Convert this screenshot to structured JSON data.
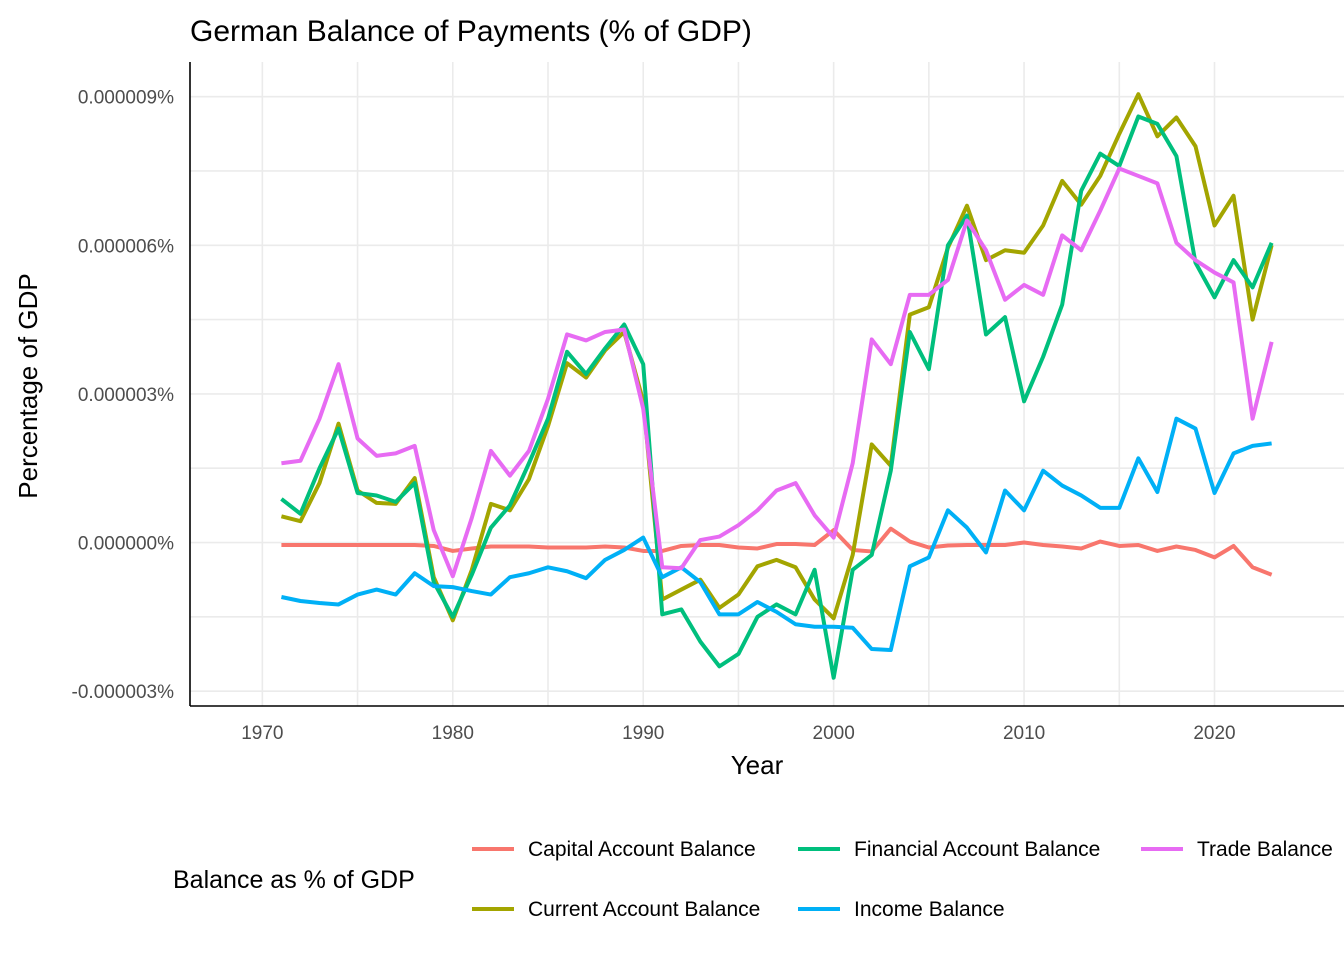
{
  "chart_data": {
    "type": "line",
    "title": "German Balance of Payments (% of GDP)",
    "xlabel": "Year",
    "ylabel": "Percentage of GDP",
    "xlim": [
      1966.2,
      1975.4
    ],
    "xlim_note": "",
    "xrange": [
      1966.2,
      2026.8
    ],
    "yrange": [
      -3.3e-06,
      9.7e-06
    ],
    "x_ticks": [
      1970,
      1980,
      1990,
      2000,
      2010,
      2020
    ],
    "x_tick_labels": [
      "1970",
      "1980",
      "1990",
      "2000",
      "2010",
      "2020"
    ],
    "y_ticks": [
      -3e-06,
      0,
      3e-06,
      6e-06,
      9e-06
    ],
    "y_tick_labels": [
      "-0.000003%",
      "0.000000%",
      "0.000003%",
      "0.000006%",
      "0.000009%"
    ],
    "grid": true,
    "legend": {
      "title": "Balance as % of GDP",
      "position": "bottom",
      "entries": [
        "Capital Account Balance",
        "Current Account Balance",
        "Financial Account Balance",
        "Income Balance",
        "Trade Balance"
      ]
    },
    "x": [
      1971,
      1972,
      1973,
      1974,
      1975,
      1976,
      1977,
      1978,
      1979,
      1980,
      1981,
      1982,
      1983,
      1984,
      1985,
      1986,
      1987,
      1988,
      1989,
      1990,
      1991,
      1992,
      1993,
      1994,
      1995,
      1996,
      1997,
      1998,
      1999,
      2000,
      2001,
      2002,
      2003,
      2004,
      2005,
      2006,
      2007,
      2008,
      2009,
      2010,
      2011,
      2012,
      2013,
      2014,
      2015,
      2016,
      2017,
      2018,
      2019,
      2020,
      2021,
      2022,
      2023
    ],
    "series": [
      {
        "name": "Capital Account Balance",
        "color": "#F8766D",
        "values": [
          -5e-08,
          -5e-08,
          -5e-08,
          -5e-08,
          -5e-08,
          -5e-08,
          -5e-08,
          -5e-08,
          -7e-08,
          -1.7e-07,
          -1.2e-07,
          -8e-08,
          -8e-08,
          -8e-08,
          -1e-07,
          -1e-07,
          -1e-07,
          -8e-08,
          -1e-07,
          -1.7e-07,
          -1.7e-07,
          -7e-08,
          -5e-08,
          -5e-08,
          -1e-07,
          -1.2e-07,
          -3e-08,
          -3e-08,
          -5e-08,
          2.5e-07,
          -1.5e-07,
          -1.8e-07,
          2.8e-07,
          2e-08,
          -1e-07,
          -6e-08,
          -5e-08,
          -5e-08,
          -5e-08,
          0.0,
          -5e-08,
          -8e-08,
          -1.2e-07,
          2e-08,
          -7e-08,
          -5e-08,
          -1.7e-07,
          -8e-08,
          -1.5e-07,
          -3e-07,
          -7e-08,
          -5e-07,
          -6.5e-07
        ]
      },
      {
        "name": "Current Account Balance",
        "color": "#A3A500",
        "values": [
          5.3e-07,
          4.3e-07,
          1.2e-06,
          2.4e-06,
          1.05e-06,
          8e-07,
          7.8e-07,
          1.3e-06,
          -7e-07,
          -1.57e-06,
          -5.5e-07,
          7.8e-07,
          6.5e-07,
          1.28e-06,
          2.35e-06,
          3.62e-06,
          3.33e-06,
          3.88e-06,
          4.25e-06,
          2.85e-06,
          -1.15e-06,
          -9.5e-07,
          -7.5e-07,
          -1.32e-06,
          -1.05e-06,
          -4.8e-07,
          -3.5e-07,
          -5e-07,
          -1.15e-06,
          -1.53e-06,
          -2.5e-07,
          1.98e-06,
          1.55e-06,
          4.6e-06,
          4.75e-06,
          5.95e-06,
          6.8e-06,
          5.7e-06,
          5.9e-06,
          5.85e-06,
          6.4e-06,
          7.3e-06,
          6.82e-06,
          7.4e-06,
          8.25e-06,
          9.05e-06,
          8.2e-06,
          8.58e-06,
          8e-06,
          6.4e-06,
          7e-06,
          4.5e-06,
          6e-06
        ]
      },
      {
        "name": "Financial Account Balance",
        "color": "#00BF7D",
        "values": [
          8.8e-07,
          5.8e-07,
          1.5e-06,
          2.3e-06,
          1e-06,
          9.5e-07,
          8.2e-07,
          1.2e-06,
          -8e-07,
          -1.5e-06,
          -6.5e-07,
          3e-07,
          7.5e-07,
          1.6e-06,
          2.5e-06,
          3.85e-06,
          3.4e-06,
          3.92e-06,
          4.4e-06,
          3.6e-06,
          -1.45e-06,
          -1.35e-06,
          -2e-06,
          -2.5e-06,
          -2.25e-06,
          -1.5e-06,
          -1.25e-06,
          -1.45e-06,
          -5.5e-07,
          -2.73e-06,
          -5.5e-07,
          -2.5e-07,
          1.45e-06,
          4.25e-06,
          3.5e-06,
          6e-06,
          6.6e-06,
          4.2e-06,
          4.55e-06,
          2.85e-06,
          3.75e-06,
          4.8e-06,
          7.1e-06,
          7.85e-06,
          7.6e-06,
          8.6e-06,
          8.45e-06,
          7.8e-06,
          5.65e-06,
          4.95e-06,
          5.7e-06,
          5.15e-06,
          6.05e-06
        ]
      },
      {
        "name": "Income Balance",
        "color": "#00B0F6",
        "values": [
          -1.1e-06,
          -1.18e-06,
          -1.22e-06,
          -1.25e-06,
          -1.05e-06,
          -9.5e-07,
          -1.05e-06,
          -6.2e-07,
          -8.8e-07,
          -9e-07,
          -9.8e-07,
          -1.05e-06,
          -7e-07,
          -6.2e-07,
          -5e-07,
          -5.8e-07,
          -7.2e-07,
          -3.5e-07,
          -1.5e-07,
          1e-07,
          -7e-07,
          -5e-07,
          -8e-07,
          -1.45e-06,
          -1.45e-06,
          -1.2e-06,
          -1.4e-06,
          -1.65e-06,
          -1.7e-06,
          -1.7e-06,
          -1.72e-06,
          -2.15e-06,
          -2.17e-06,
          -4.8e-07,
          -3e-07,
          6.5e-07,
          3e-07,
          -2e-07,
          1.05e-06,
          6.5e-07,
          1.45e-06,
          1.15e-06,
          9.5e-07,
          7e-07,
          7e-07,
          1.7e-06,
          1.02e-06,
          2.5e-06,
          2.3e-06,
          1e-06,
          1.8e-06,
          1.95e-06,
          2e-06
        ]
      },
      {
        "name": "Trade Balance",
        "color": "#E76BF3",
        "values": [
          1.6e-06,
          1.65e-06,
          2.5e-06,
          3.6e-06,
          2.1e-06,
          1.75e-06,
          1.8e-06,
          1.95e-06,
          2.5e-07,
          -6.8e-07,
          5e-07,
          1.85e-06,
          1.35e-06,
          1.85e-06,
          2.9e-06,
          4.2e-06,
          4.08e-06,
          4.25e-06,
          4.3e-06,
          2.7e-06,
          -5e-07,
          -5.2e-07,
          5e-08,
          1.2e-07,
          3.5e-07,
          6.5e-07,
          1.05e-06,
          1.2e-06,
          5.5e-07,
          1e-07,
          1.6e-06,
          4.1e-06,
          3.6e-06,
          5e-06,
          5e-06,
          5.3e-06,
          6.5e-06,
          5.9e-06,
          4.9e-06,
          5.2e-06,
          5e-06,
          6.2e-06,
          5.9e-06,
          6.7e-06,
          7.55e-06,
          7.4e-06,
          7.25e-06,
          6.05e-06,
          5.7e-06,
          5.45e-06,
          5.25e-06,
          2.5e-06,
          4.05e-06
        ]
      }
    ]
  }
}
